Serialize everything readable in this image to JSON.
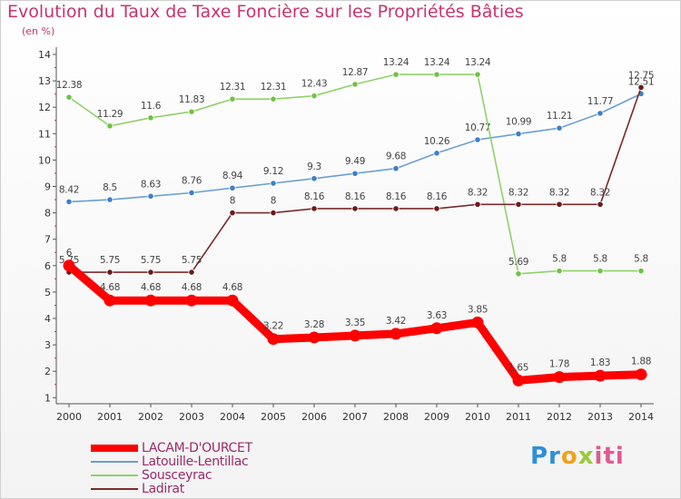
{
  "chart_data": {
    "type": "line",
    "title": "Evolution du Taux de Taxe Foncière sur les Propriétés Bâties",
    "unit_label": "(en %)",
    "xlabel": "",
    "ylabel": "",
    "x": [
      "2000",
      "2001",
      "2002",
      "2003",
      "2004",
      "2005",
      "2006",
      "2007",
      "2008",
      "2009",
      "2010",
      "2011",
      "2012",
      "2013",
      "2014"
    ],
    "ylim": [
      0.7,
      14
    ],
    "yticks": [
      1,
      2,
      3,
      4,
      5,
      6,
      7,
      8,
      9,
      10,
      11,
      12,
      13,
      14
    ],
    "grid": false,
    "legend_position": "bottom-left",
    "series": [
      {
        "name": "LACAM-D'OURCET",
        "color": "#ff0000",
        "marker_color": "#ff0000",
        "emphasis": true,
        "values": [
          6,
          4.68,
          4.68,
          4.68,
          4.68,
          3.22,
          3.28,
          3.35,
          3.42,
          3.63,
          3.85,
          1.65,
          1.78,
          1.83,
          1.88
        ],
        "labels": [
          "6",
          "4.68",
          "4.68",
          "4.68",
          "4.68",
          "3.22",
          "3.28",
          "3.35",
          "3.42",
          "3.63",
          "3.85",
          "1.65",
          "1.78",
          "1.83",
          "1.88"
        ]
      },
      {
        "name": "Latouille-Lentillac",
        "color": "#6a9fd4",
        "marker_color": "#3f7fc8",
        "values": [
          8.42,
          8.5,
          8.63,
          8.76,
          8.94,
          9.12,
          9.3,
          9.49,
          9.68,
          10.26,
          10.77,
          10.99,
          11.21,
          11.77,
          12.51
        ],
        "labels": [
          "8.42",
          "8.5",
          "8.63",
          "8.76",
          "8.94",
          "9.12",
          "9.3",
          "9.49",
          "9.68",
          "10.26",
          "10.77",
          "10.99",
          "11.21",
          "11.77",
          "12.51"
        ]
      },
      {
        "name": "Sousceyrac",
        "color": "#8fd16a",
        "marker_color": "#6fc242",
        "values": [
          12.38,
          11.29,
          11.6,
          11.83,
          12.31,
          12.31,
          12.43,
          12.87,
          13.24,
          13.24,
          13.24,
          5.69,
          5.8,
          5.8,
          5.8
        ],
        "labels": [
          "12.38",
          "11.29",
          "11.6",
          "11.83",
          "12.31",
          "12.31",
          "12.43",
          "12.87",
          "13.24",
          "13.24",
          "13.24",
          "5.69",
          "5.8",
          "5.8",
          "5.8"
        ]
      },
      {
        "name": "Ladirat",
        "color": "#7a2a2a",
        "marker_color": "#6b1a1a",
        "values": [
          5.75,
          5.75,
          5.75,
          5.75,
          8,
          8,
          8.16,
          8.16,
          8.16,
          8.16,
          8.32,
          8.32,
          8.32,
          8.32,
          12.75
        ],
        "labels": [
          "5.75",
          "5.75",
          "5.75",
          "5.75",
          "8",
          "8",
          "8.16",
          "8.16",
          "8.16",
          "8.16",
          "8.32",
          "8.32",
          "8.32",
          "8.32",
          "12.75"
        ]
      }
    ]
  },
  "logo": {
    "parts": [
      "Pr",
      "o",
      "x",
      "iti"
    ],
    "colors": [
      "#2f8fd8",
      "#f2a21c",
      "#9ac93b",
      "#e05a8e"
    ]
  }
}
